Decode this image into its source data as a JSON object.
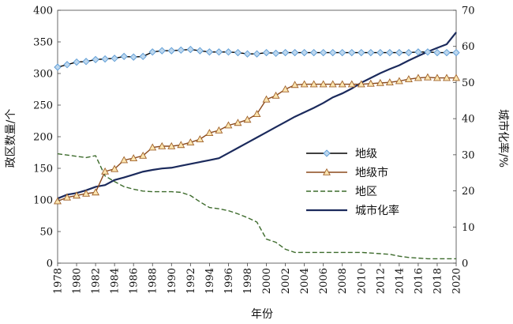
{
  "chart_data": {
    "type": "line",
    "xlabel": "年份",
    "ylabel_left": "政区数量/个",
    "ylabel_right": "城市化率/%",
    "ylim_left": [
      0,
      400
    ],
    "ylim_right": [
      0,
      70
    ],
    "yticks_left": [
      "0",
      "50",
      "100",
      "150",
      "200",
      "250",
      "300",
      "350",
      "400"
    ],
    "yticks_right": [
      "0",
      "10",
      "20",
      "30",
      "40",
      "50",
      "60",
      "70"
    ],
    "xticks": [
      "1978",
      "1980",
      "1982",
      "1984",
      "1986",
      "1988",
      "1990",
      "1992",
      "1994",
      "1996",
      "1998",
      "2000",
      "2002",
      "2004",
      "2006",
      "2008",
      "2010",
      "2012",
      "2014",
      "2016",
      "2018",
      "2020"
    ],
    "xlim": [
      1978,
      2020
    ],
    "grid": false,
    "legend_position": "center-right",
    "x": [
      1978,
      1979,
      1980,
      1981,
      1982,
      1983,
      1984,
      1985,
      1986,
      1987,
      1988,
      1989,
      1990,
      1991,
      1992,
      1993,
      1994,
      1995,
      1996,
      1997,
      1998,
      1999,
      2000,
      2001,
      2002,
      2003,
      2004,
      2005,
      2006,
      2007,
      2008,
      2009,
      2010,
      2011,
      2012,
      2013,
      2014,
      2015,
      2016,
      2017,
      2018,
      2019,
      2020
    ],
    "series": [
      {
        "name": "地级",
        "axis": "left",
        "color": "#000000",
        "marker": "diamond",
        "marker_fill": "#bdd7ee",
        "marker_stroke": "#5b9bd5",
        "dash": "",
        "values": [
          310,
          314,
          318,
          319,
          322,
          323,
          324,
          327,
          326,
          327,
          334,
          336,
          336,
          337,
          338,
          336,
          334,
          334,
          334,
          333,
          331,
          331,
          333,
          332,
          333,
          333,
          333,
          333,
          333,
          333,
          333,
          333,
          333,
          333,
          333,
          333,
          333,
          333,
          334,
          334,
          333,
          333,
          333
        ]
      },
      {
        "name": "地级市",
        "axis": "left",
        "color": "#8b4a1c",
        "marker": "triangle",
        "marker_fill": "#fbe5b0",
        "marker_stroke": "#a0622b",
        "dash": "",
        "values": [
          98,
          104,
          107,
          110,
          112,
          145,
          149,
          163,
          166,
          170,
          183,
          185,
          185,
          187,
          191,
          196,
          206,
          210,
          218,
          222,
          227,
          236,
          259,
          265,
          275,
          282,
          283,
          283,
          283,
          283,
          283,
          283,
          283,
          284,
          285,
          286,
          288,
          291,
          293,
          294,
          293,
          293,
          293
        ]
      },
      {
        "name": "地区",
        "axis": "left",
        "color": "#3d6b2c",
        "marker": "none",
        "dash": "6,3",
        "values": [
          173,
          171,
          169,
          167,
          170,
          138,
          129,
          121,
          117,
          114,
          113,
          113,
          113,
          112,
          107,
          97,
          88,
          86,
          83,
          78,
          72,
          65,
          38,
          33,
          22,
          17,
          17,
          17,
          17,
          17,
          17,
          17,
          17,
          16,
          15,
          14,
          11,
          9,
          8,
          7,
          7,
          7,
          7
        ]
      },
      {
        "name": "城市化率",
        "axis": "right",
        "color": "#1b2a5c",
        "marker": "none",
        "dash": "",
        "values": [
          17.9,
          18.96,
          19.39,
          20.16,
          21.13,
          21.62,
          23.01,
          23.71,
          24.52,
          25.32,
          25.81,
          26.21,
          26.41,
          26.94,
          27.46,
          27.99,
          28.51,
          29.04,
          30.48,
          31.91,
          33.35,
          34.78,
          36.22,
          37.66,
          39.09,
          40.53,
          41.76,
          42.99,
          44.34,
          45.89,
          46.99,
          48.34,
          49.95,
          51.27,
          52.57,
          53.73,
          54.77,
          56.1,
          57.35,
          58.52,
          59.58,
          60.6,
          63.89
        ]
      }
    ]
  }
}
